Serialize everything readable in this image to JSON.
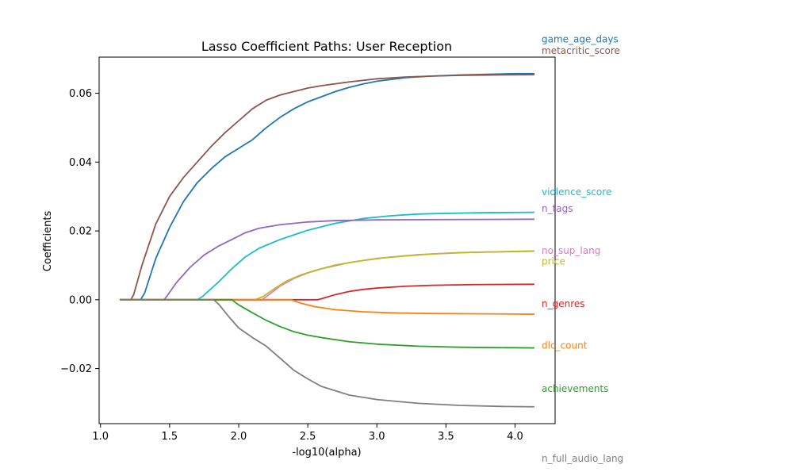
{
  "chart_data": {
    "type": "line",
    "title": "Lasso Coefficient Paths: User Reception",
    "xlabel": "-log10(alpha)",
    "ylabel": "Coefficients",
    "xlim": [
      0.99,
      4.29
    ],
    "ylim": [
      -0.036,
      0.0705
    ],
    "xticks": [
      1.0,
      1.5,
      2.0,
      2.5,
      3.0,
      3.5,
      4.0
    ],
    "xtick_labels": [
      "1.0",
      "1.5",
      "2.0",
      "2.5",
      "3.0",
      "3.5",
      "4.0"
    ],
    "yticks": [
      -0.02,
      0.0,
      0.02,
      0.04,
      0.06
    ],
    "ytick_labels": [
      "−0.02",
      "0.00",
      "0.02",
      "0.04",
      "0.06"
    ],
    "grid": false,
    "legend": "right-side labels",
    "series": [
      {
        "name": "game_age_days",
        "color": "#1f77b4",
        "label_y": 0.0757,
        "points": [
          [
            1.14,
            0
          ],
          [
            1.29,
            0
          ],
          [
            1.32,
            0.002
          ],
          [
            1.4,
            0.012
          ],
          [
            1.5,
            0.021
          ],
          [
            1.6,
            0.0285
          ],
          [
            1.7,
            0.034
          ],
          [
            1.8,
            0.038
          ],
          [
            1.9,
            0.0415
          ],
          [
            2.0,
            0.044
          ],
          [
            2.1,
            0.0465
          ],
          [
            2.2,
            0.05
          ],
          [
            2.3,
            0.053
          ],
          [
            2.4,
            0.0555
          ],
          [
            2.5,
            0.0575
          ],
          [
            2.6,
            0.059
          ],
          [
            2.7,
            0.0605
          ],
          [
            2.8,
            0.0617
          ],
          [
            2.9,
            0.0627
          ],
          [
            3.0,
            0.0635
          ],
          [
            3.2,
            0.0645
          ],
          [
            3.4,
            0.065
          ],
          [
            3.6,
            0.0653
          ],
          [
            3.8,
            0.0655
          ],
          [
            4.0,
            0.0657
          ],
          [
            4.14,
            0.0657
          ]
        ]
      },
      {
        "name": "metacritic_score",
        "color": "#8c564b",
        "label_y": 0.0724,
        "points": [
          [
            1.14,
            0
          ],
          [
            1.22,
            0
          ],
          [
            1.24,
            0.0015
          ],
          [
            1.3,
            0.01
          ],
          [
            1.4,
            0.022
          ],
          [
            1.5,
            0.03
          ],
          [
            1.6,
            0.0355
          ],
          [
            1.7,
            0.04
          ],
          [
            1.8,
            0.0445
          ],
          [
            1.9,
            0.0485
          ],
          [
            2.0,
            0.052
          ],
          [
            2.1,
            0.0555
          ],
          [
            2.2,
            0.058
          ],
          [
            2.3,
            0.0595
          ],
          [
            2.4,
            0.0605
          ],
          [
            2.5,
            0.0615
          ],
          [
            2.6,
            0.0622
          ],
          [
            2.8,
            0.0633
          ],
          [
            3.0,
            0.0642
          ],
          [
            3.2,
            0.0647
          ],
          [
            3.4,
            0.065
          ],
          [
            3.6,
            0.0652
          ],
          [
            3.8,
            0.0653
          ],
          [
            4.14,
            0.0654
          ]
        ]
      },
      {
        "name": "violence_score",
        "color": "#17becf",
        "label_y": 0.0313,
        "points": [
          [
            1.14,
            0
          ],
          [
            1.7,
            0
          ],
          [
            1.74,
            0.001
          ],
          [
            1.85,
            0.005
          ],
          [
            1.95,
            0.009
          ],
          [
            2.05,
            0.0125
          ],
          [
            2.15,
            0.015
          ],
          [
            2.3,
            0.0175
          ],
          [
            2.5,
            0.0202
          ],
          [
            2.7,
            0.0222
          ],
          [
            2.9,
            0.0236
          ],
          [
            3.1,
            0.0244
          ],
          [
            3.3,
            0.0249
          ],
          [
            3.5,
            0.0251
          ],
          [
            3.8,
            0.0253
          ],
          [
            4.14,
            0.0254
          ]
        ]
      },
      {
        "name": "n_tags",
        "color": "#9467bd",
        "label_y": 0.0265,
        "points": [
          [
            1.14,
            0
          ],
          [
            1.46,
            0
          ],
          [
            1.48,
            0.001
          ],
          [
            1.55,
            0.005
          ],
          [
            1.65,
            0.0095
          ],
          [
            1.75,
            0.013
          ],
          [
            1.85,
            0.0155
          ],
          [
            1.95,
            0.0175
          ],
          [
            2.05,
            0.0195
          ],
          [
            2.15,
            0.0208
          ],
          [
            2.3,
            0.0218
          ],
          [
            2.5,
            0.0226
          ],
          [
            2.7,
            0.023
          ],
          [
            3.0,
            0.0232
          ],
          [
            3.5,
            0.0233
          ],
          [
            4.14,
            0.0234
          ]
        ]
      },
      {
        "name": "no_sup_lang",
        "color": "#e377c2",
        "label_y": 0.0143,
        "points": [
          [
            1.14,
            0
          ],
          [
            2.17,
            0
          ],
          [
            2.22,
            0.0015
          ],
          [
            2.3,
            0.004
          ],
          [
            2.4,
            0.0062
          ],
          [
            2.5,
            0.0078
          ],
          [
            2.6,
            0.009
          ],
          [
            2.8,
            0.0108
          ],
          [
            3.0,
            0.012
          ],
          [
            3.3,
            0.0131
          ],
          [
            3.6,
            0.0137
          ],
          [
            4.0,
            0.014
          ],
          [
            4.14,
            0.0141
          ]
        ]
      },
      {
        "name": "price",
        "color": "#bcbd22",
        "label_y": 0.0111,
        "points": [
          [
            1.14,
            0
          ],
          [
            2.12,
            0
          ],
          [
            2.18,
            0.001
          ],
          [
            2.25,
            0.003
          ],
          [
            2.35,
            0.0055
          ],
          [
            2.45,
            0.0072
          ],
          [
            2.55,
            0.0085
          ],
          [
            2.7,
            0.0101
          ],
          [
            2.9,
            0.0114
          ],
          [
            3.1,
            0.0124
          ],
          [
            3.4,
            0.0133
          ],
          [
            3.7,
            0.0138
          ],
          [
            4.14,
            0.0142
          ]
        ]
      },
      {
        "name": "n_genres",
        "color": "#d62728",
        "label_y": -0.0012,
        "points": [
          [
            1.14,
            0
          ],
          [
            2.57,
            0
          ],
          [
            2.6,
            0.0003
          ],
          [
            2.7,
            0.0015
          ],
          [
            2.8,
            0.0024
          ],
          [
            2.9,
            0.003
          ],
          [
            3.0,
            0.0034
          ],
          [
            3.2,
            0.0039
          ],
          [
            3.4,
            0.0042
          ],
          [
            3.7,
            0.0044
          ],
          [
            4.14,
            0.0045
          ]
        ]
      },
      {
        "name": "dlc_count",
        "color": "#ff7f0e",
        "label_y": -0.0133,
        "points": [
          [
            1.14,
            0
          ],
          [
            2.38,
            0
          ],
          [
            2.45,
            -0.001
          ],
          [
            2.55,
            -0.002
          ],
          [
            2.7,
            -0.0029
          ],
          [
            2.9,
            -0.0035
          ],
          [
            3.1,
            -0.0038
          ],
          [
            3.4,
            -0.004
          ],
          [
            3.8,
            -0.0041
          ],
          [
            4.14,
            -0.0042
          ]
        ]
      },
      {
        "name": "achievements",
        "color": "#2ca02c",
        "label_y": -0.0258,
        "points": [
          [
            1.14,
            0
          ],
          [
            1.95,
            0
          ],
          [
            2.0,
            -0.0015
          ],
          [
            2.1,
            -0.0038
          ],
          [
            2.2,
            -0.006
          ],
          [
            2.3,
            -0.0078
          ],
          [
            2.4,
            -0.0093
          ],
          [
            2.5,
            -0.0103
          ],
          [
            2.6,
            -0.011
          ],
          [
            2.8,
            -0.0122
          ],
          [
            3.0,
            -0.0129
          ],
          [
            3.3,
            -0.0135
          ],
          [
            3.6,
            -0.0138
          ],
          [
            4.14,
            -0.014
          ]
        ]
      },
      {
        "name": "n_full_audio_lang",
        "color": "#7f7f7f",
        "label_y": -0.0462,
        "points": [
          [
            1.14,
            0
          ],
          [
            1.82,
            0
          ],
          [
            1.86,
            -0.0015
          ],
          [
            1.93,
            -0.005
          ],
          [
            2.0,
            -0.0082
          ],
          [
            2.1,
            -0.011
          ],
          [
            2.2,
            -0.0135
          ],
          [
            2.3,
            -0.017
          ],
          [
            2.4,
            -0.0205
          ],
          [
            2.5,
            -0.023
          ],
          [
            2.6,
            -0.0252
          ],
          [
            2.8,
            -0.0277
          ],
          [
            3.0,
            -0.029
          ],
          [
            3.3,
            -0.0301
          ],
          [
            3.6,
            -0.0307
          ],
          [
            3.9,
            -0.031
          ],
          [
            4.14,
            -0.0311
          ]
        ]
      }
    ]
  }
}
